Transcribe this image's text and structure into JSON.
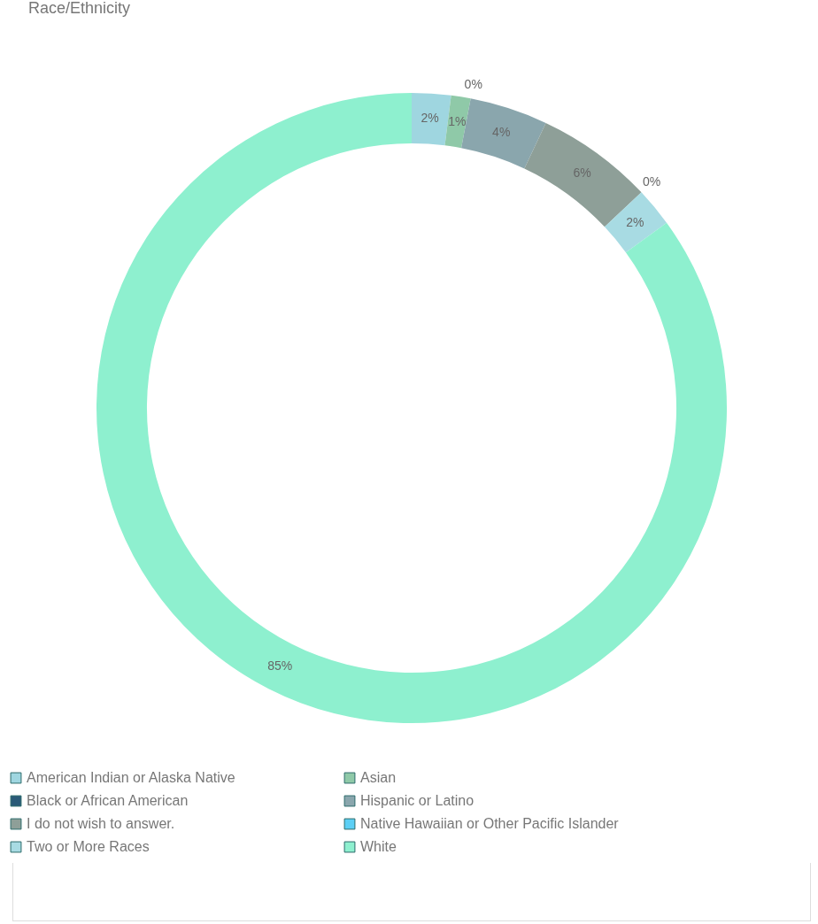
{
  "chart_data": {
    "type": "donut",
    "title": "Race/Ethnicity",
    "categories": [
      "American Indian or Alaska Native",
      "Asian",
      "Black or African American",
      "Hispanic or Latino",
      "I do not wish to answer.",
      "Native Hawaiian or Other Pacific Islander",
      "Two or More Races",
      "White"
    ],
    "values": [
      2,
      1,
      0,
      4,
      6,
      0,
      2,
      85
    ],
    "colors": [
      "#9fd6e0",
      "#8fc9a8",
      "#2a5a78",
      "#8aa6ad",
      "#8e9f98",
      "#5ccff5",
      "#a8dbe3",
      "#8ef0cf"
    ],
    "value_labels": [
      "2%",
      "1%",
      "0%",
      "4%",
      "6%",
      "0%",
      "2%",
      "85%"
    ],
    "legend": "bottom"
  }
}
